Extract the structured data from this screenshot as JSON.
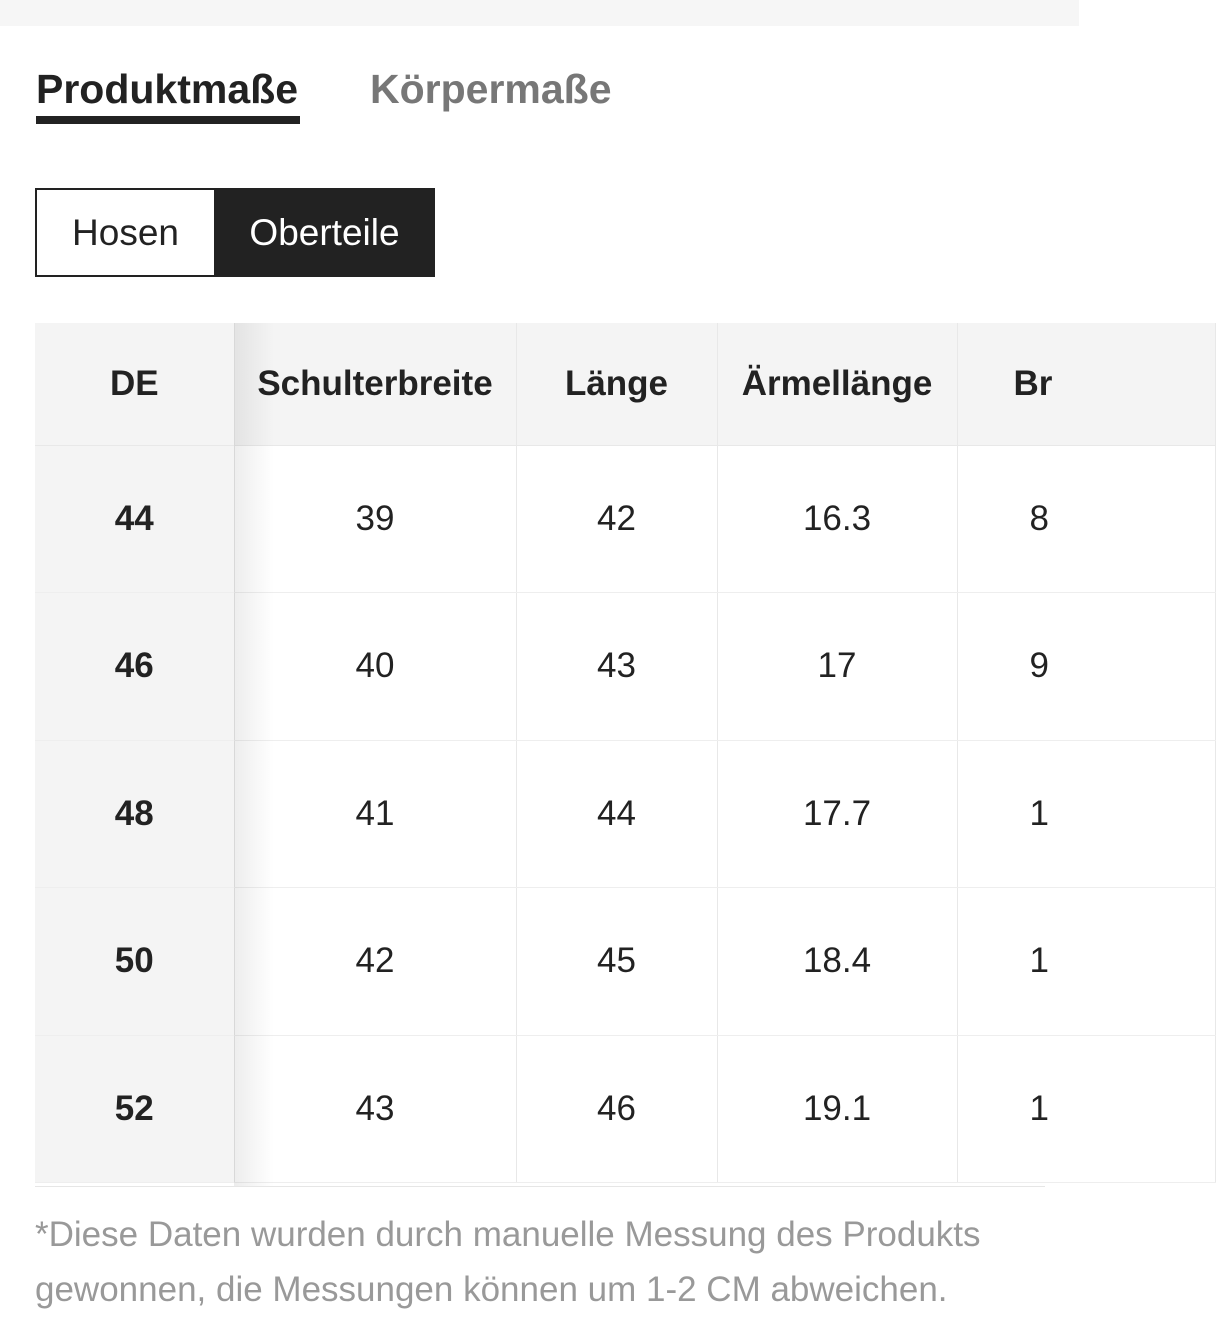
{
  "tabs": [
    {
      "label": "Produktmaße",
      "active": true
    },
    {
      "label": "Körpermaße",
      "active": false
    }
  ],
  "category_toggle": [
    {
      "label": "Hosen",
      "selected": false
    },
    {
      "label": "Oberteile",
      "selected": true
    }
  ],
  "size_table": {
    "headers": [
      "DE",
      "Schulterbreite",
      "Länge",
      "Ärmellänge",
      "Br"
    ],
    "rows": [
      {
        "size": "44",
        "cells": [
          "39",
          "42",
          "16.3",
          "8"
        ]
      },
      {
        "size": "46",
        "cells": [
          "40",
          "43",
          "17",
          "9"
        ]
      },
      {
        "size": "48",
        "cells": [
          "41",
          "44",
          "17.7",
          "1"
        ]
      },
      {
        "size": "50",
        "cells": [
          "42",
          "45",
          "18.4",
          "1"
        ]
      },
      {
        "size": "52",
        "cells": [
          "43",
          "46",
          "19.1",
          "1"
        ]
      }
    ]
  },
  "note": "*Diese Daten wurden durch manuelle Messung des Produkts gewonnen, die Messungen können um 1-2 CM abweichen.",
  "colors": {
    "primary": "#222222",
    "muted": "#777777",
    "header_bg": "#f4f4f4",
    "note_text": "#999999"
  }
}
